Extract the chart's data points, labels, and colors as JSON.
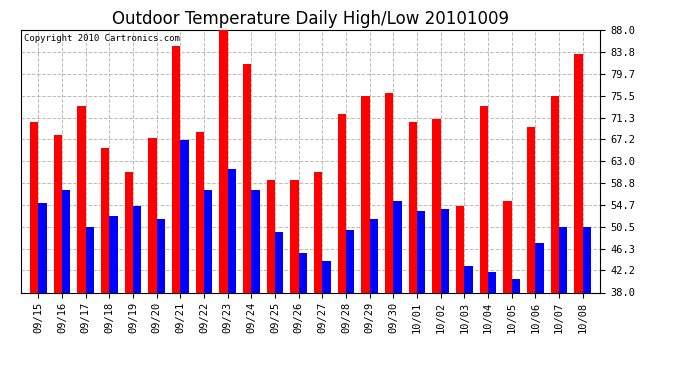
{
  "title": "Outdoor Temperature Daily High/Low 20101009",
  "copyright_text": "Copyright 2010 Cartronics.com",
  "categories": [
    "09/15",
    "09/16",
    "09/17",
    "09/18",
    "09/19",
    "09/20",
    "09/21",
    "09/22",
    "09/23",
    "09/24",
    "09/25",
    "09/26",
    "09/27",
    "09/28",
    "09/29",
    "09/30",
    "10/01",
    "10/02",
    "10/03",
    "10/04",
    "10/05",
    "10/06",
    "10/07",
    "10/08"
  ],
  "highs": [
    70.5,
    68.0,
    73.5,
    65.5,
    61.0,
    67.5,
    85.0,
    68.5,
    89.0,
    81.5,
    59.5,
    59.5,
    61.0,
    72.0,
    75.5,
    76.0,
    70.5,
    71.0,
    54.5,
    73.5,
    55.5,
    69.5,
    75.5,
    83.5
  ],
  "lows": [
    55.0,
    57.5,
    50.5,
    52.5,
    54.5,
    52.0,
    67.0,
    57.5,
    61.5,
    57.5,
    49.5,
    45.5,
    44.0,
    50.0,
    52.0,
    55.5,
    53.5,
    54.0,
    43.0,
    42.0,
    40.5,
    47.5,
    50.5,
    50.5
  ],
  "high_color": "#ff0000",
  "low_color": "#0000ff",
  "ylim_min": 38.0,
  "ylim_max": 88.0,
  "yticks": [
    38.0,
    42.2,
    46.3,
    50.5,
    54.7,
    58.8,
    63.0,
    67.2,
    71.3,
    75.5,
    79.7,
    83.8,
    88.0
  ],
  "background_color": "#ffffff",
  "plot_bg_color": "#ffffff",
  "grid_color": "#bbbbbb",
  "title_fontsize": 12,
  "bar_width": 0.35,
  "copyright_fontsize": 6.5,
  "tick_fontsize": 7.5
}
